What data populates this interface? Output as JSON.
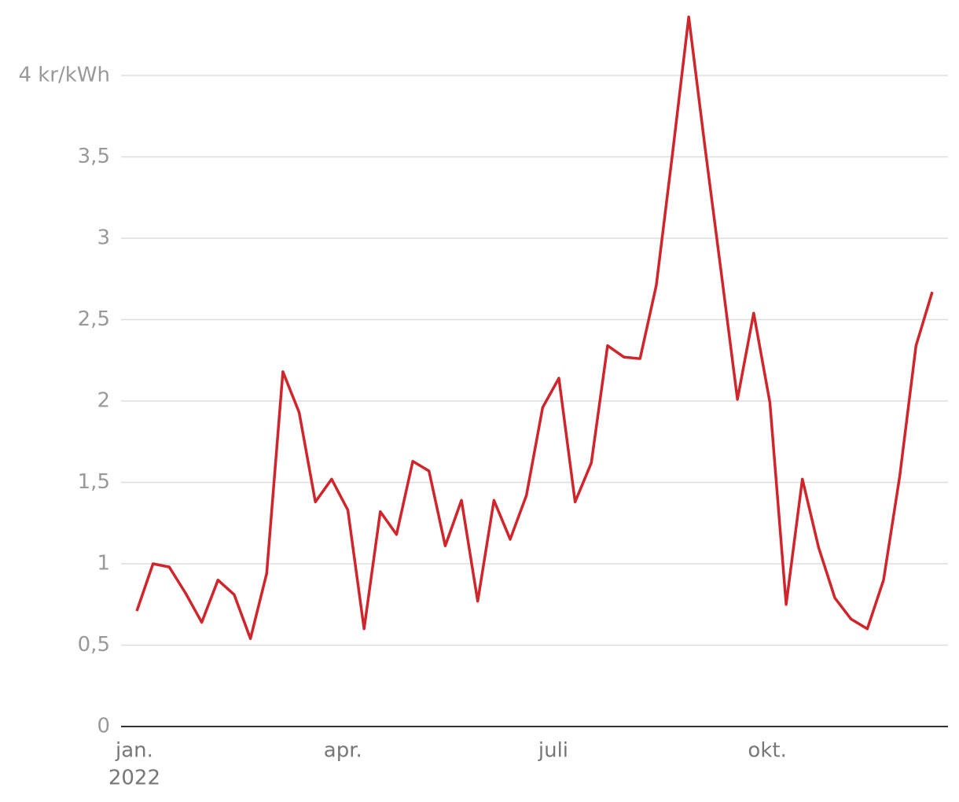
{
  "chart_data": {
    "type": "line",
    "x": [
      0,
      1,
      2,
      3,
      4,
      5,
      6,
      7,
      8,
      9,
      10,
      11,
      12,
      13,
      14,
      15,
      16,
      17,
      18,
      19,
      20,
      21,
      22,
      23,
      24,
      25,
      26,
      27,
      28,
      29,
      30,
      31,
      32,
      33,
      34,
      35,
      36,
      37,
      38,
      39,
      40,
      41,
      42,
      43,
      44,
      45,
      46,
      47,
      48,
      49
    ],
    "series": [
      {
        "color": "#d0252b",
        "values": [
          0.71,
          1.0,
          0.98,
          0.82,
          0.64,
          0.9,
          0.81,
          0.54,
          0.94,
          2.18,
          1.93,
          1.38,
          1.52,
          1.33,
          0.6,
          1.32,
          1.18,
          1.63,
          1.57,
          1.11,
          1.39,
          0.77,
          1.39,
          1.15,
          1.42,
          1.96,
          2.14,
          1.38,
          1.62,
          2.34,
          2.27,
          2.26,
          2.71,
          3.52,
          4.36,
          3.56,
          2.79,
          2.01,
          2.54,
          1.99,
          0.75,
          1.52,
          1.1,
          0.79,
          0.66,
          0.6,
          0.9,
          1.54,
          2.34,
          2.67
        ]
      }
    ],
    "xlim": [
      -0.97,
      49.97
    ],
    "xticks": [
      {
        "value": -0.15,
        "label": "jan."
      },
      {
        "value": 12.7,
        "label": "apr."
      },
      {
        "value": 25.66,
        "label": "juli"
      },
      {
        "value": 38.84,
        "label": "okt."
      }
    ],
    "year_label": "2022",
    "ylim": [
      0,
      4.4
    ],
    "yticks": [
      0,
      {
        "value": 0.5,
        "label": "0,5"
      },
      1,
      {
        "value": 1.5,
        "label": "1,5"
      },
      2,
      {
        "value": 2.5,
        "label": "2,5"
      },
      3,
      {
        "value": 3.5,
        "label": "3,5"
      },
      {
        "value": 4,
        "label": "4 kr/kWh"
      }
    ],
    "grid": true
  }
}
